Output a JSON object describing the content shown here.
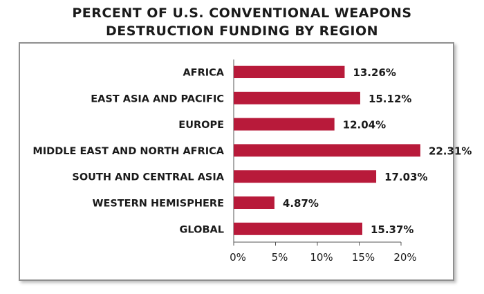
{
  "title_line1": "PERCENT OF U.S. CONVENTIONAL WEAPONS",
  "title_line2": "DESTRUCTION FUNDING BY REGION",
  "colors": {
    "bar": "#b81a3a",
    "text": "#1a1a1a",
    "axis": "#555555"
  },
  "chart_data": {
    "type": "bar",
    "orientation": "horizontal",
    "title": "PERCENT OF U.S. CONVENTIONAL WEAPONS DESTRUCTION FUNDING BY REGION",
    "categories": [
      "AFRICA",
      "EAST ASIA AND PACIFIC",
      "EUROPE",
      "MIDDLE EAST AND NORTH AFRICA",
      "SOUTH AND CENTRAL ASIA",
      "WESTERN HEMISPHERE",
      "GLOBAL"
    ],
    "values": [
      13.26,
      15.12,
      12.04,
      22.31,
      17.03,
      4.87,
      15.37
    ],
    "value_labels": [
      "13.26%",
      "15.12%",
      "12.04%",
      "22.31%",
      "17.03%",
      "4.87%",
      "15.37%"
    ],
    "xlim": [
      0,
      20
    ],
    "xticks": [
      0,
      5,
      10,
      15,
      20
    ],
    "xtick_labels": [
      "0%",
      "5%",
      "10%",
      "15%",
      "20%"
    ],
    "grid": false
  }
}
